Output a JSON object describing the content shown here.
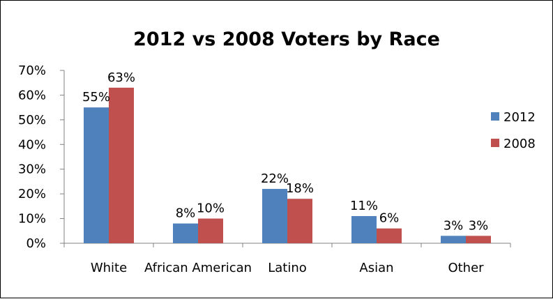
{
  "chart_data": {
    "type": "bar",
    "title": "2012 vs 2008 Voters by Race",
    "categories": [
      "White",
      "African American",
      "Latino",
      "Asian",
      "Other"
    ],
    "series": [
      {
        "name": "2012",
        "values": [
          55,
          8,
          22,
          11,
          3
        ],
        "color": "#4f81bd"
      },
      {
        "name": "2008",
        "values": [
          63,
          10,
          18,
          6,
          3
        ],
        "color": "#c0504d"
      }
    ],
    "data_labels": [
      [
        "55%",
        "8%",
        "22%",
        "11%",
        "3%"
      ],
      [
        "63%",
        "10%",
        "18%",
        "6%",
        "3%"
      ]
    ],
    "ylim": [
      0,
      70
    ],
    "y_ticks": [
      "0%",
      "10%",
      "20%",
      "30%",
      "40%",
      "50%",
      "60%",
      "70%"
    ],
    "xlabel": "",
    "ylabel": "",
    "grid": false,
    "legend": "right"
  }
}
